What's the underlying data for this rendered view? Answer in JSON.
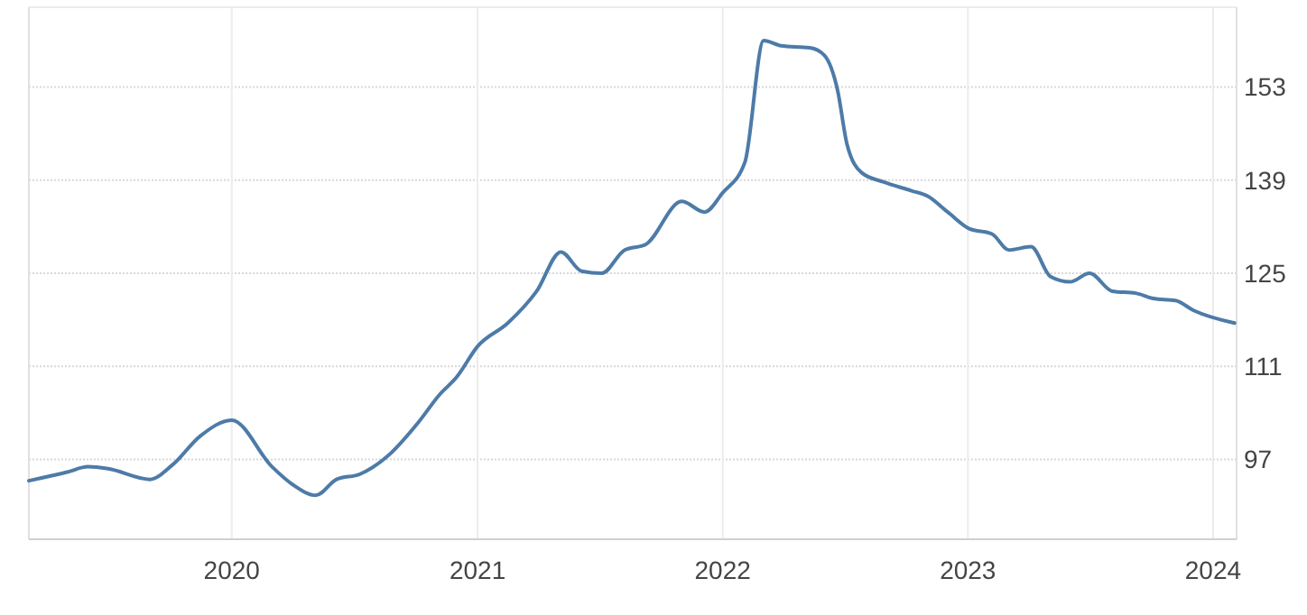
{
  "chart_data": {
    "type": "line",
    "x": [
      "2019-03-05",
      "2019-05-01",
      "2019-06-01",
      "2019-07-01",
      "2019-09-01",
      "2019-10-05",
      "2019-11-15",
      "2020-01-01",
      "2020-03-01",
      "2020-04-01",
      "2020-05-05",
      "2020-06-05",
      "2020-07-10",
      "2020-08-20",
      "2020-10-05",
      "2020-11-05",
      "2020-12-01",
      "2021-01-01",
      "2021-02-15",
      "2021-03-30",
      "2021-05-05",
      "2021-06-05",
      "2021-07-05",
      "2021-08-08",
      "2021-09-08",
      "2021-11-01",
      "2021-12-05",
      "2022-01-01",
      "2022-02-03",
      "2022-03-03",
      "2022-03-29",
      "2022-05-11",
      "2022-06-01",
      "2022-06-21",
      "2022-07-05",
      "2022-07-27",
      "2022-08-29",
      "2022-10-09",
      "2022-11-02",
      "2022-12-02",
      "2023-01-03",
      "2023-02-06",
      "2023-03-03",
      "2023-04-05",
      "2023-05-04",
      "2023-06-02",
      "2023-07-01",
      "2023-08-04",
      "2023-09-08",
      "2023-10-04",
      "2023-11-06",
      "2023-12-03",
      "2024-02-02"
    ],
    "series": [
      {
        "color": "#4d7ba8",
        "values": [
          93.8,
          95.1,
          95.9,
          95.6,
          94.0,
          96.2,
          100.5,
          102.9,
          95.9,
          93.2,
          91.6,
          94.0,
          94.8,
          97.5,
          102.6,
          106.7,
          109.4,
          114.0,
          117.5,
          122.3,
          128.2,
          125.3,
          125.0,
          128.5,
          129.3,
          135.8,
          134.2,
          137.1,
          141.7,
          160.0,
          159.2,
          158.9,
          157.8,
          152.5,
          144.4,
          140.1,
          138.7,
          137.4,
          136.6,
          134.2,
          131.7,
          130.9,
          128.5,
          129.0,
          124.5,
          123.7,
          125.0,
          122.3,
          122.0,
          121.2,
          120.9,
          119.4,
          117.5
        ]
      }
    ],
    "xlim": [
      "2019-03-05",
      "2024-02-05"
    ],
    "ylim": [
      85,
      165
    ],
    "xticks": [
      {
        "value": "2020-01-01",
        "label": "2020"
      },
      {
        "value": "2021-01-01",
        "label": "2021"
      },
      {
        "value": "2022-01-01",
        "label": "2022"
      },
      {
        "value": "2023-01-01",
        "label": "2023"
      },
      {
        "value": "2024-01-01",
        "label": "2024"
      }
    ],
    "yticks": [
      97,
      111,
      125,
      139,
      153
    ],
    "grid": true,
    "marker": "none",
    "line_style": "solid"
  }
}
